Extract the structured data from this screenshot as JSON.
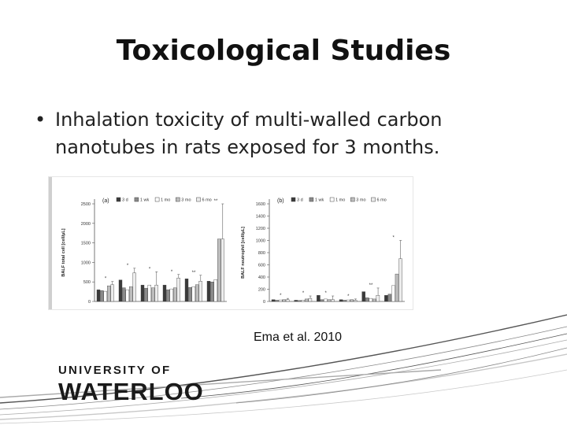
{
  "slide": {
    "title": "Toxicological Studies",
    "bullet_marker": "•",
    "bullet_text": "Inhalation toxicity of multi-walled carbon nanotubes in rats exposed for 3 months.",
    "citation": "Ema et al. 2010"
  },
  "logo": {
    "line1": "UNIVERSITY OF",
    "line2": "WATERLOO"
  },
  "chart_data": [
    {
      "type": "bar",
      "panel_label": "(a)",
      "ylabel": "BALF total cell [cell/μL]",
      "ylim": [
        0,
        2500
      ],
      "yticks": [
        "0",
        "500",
        "1000",
        "1500",
        "2000",
        "2500"
      ],
      "legend": [
        "3 d",
        "1 wk",
        "1 mo",
        "3 mo",
        "6 mo"
      ],
      "legend_position": "top",
      "groups": 6,
      "series": [
        {
          "values": [
            300,
            550,
            420,
            420,
            580,
            520
          ]
        },
        {
          "values": [
            280,
            350,
            340,
            300,
            360,
            500
          ]
        },
        {
          "values": [
            260,
            300,
            420,
            320,
            380,
            560
          ]
        },
        {
          "values": [
            400,
            380,
            350,
            350,
            430,
            1600
          ]
        },
        {
          "values": [
            430,
            730,
            420,
            600,
            520,
            1600
          ]
        }
      ],
      "errors": [
        80,
        120,
        340,
        90,
        150,
        900
      ],
      "annotations": [
        "*",
        "*",
        "*",
        "*",
        "**",
        "**"
      ]
    },
    {
      "type": "bar",
      "panel_label": "(b)",
      "ylabel": "BALF neutrophil [cell/μL]",
      "ylim": [
        0,
        1600
      ],
      "yticks": [
        "0",
        "200",
        "400",
        "600",
        "800",
        "1000",
        "1200",
        "1400",
        "1600"
      ],
      "legend": [
        "3 d",
        "1 wk",
        "1 mo",
        "3 mo",
        "6 mo"
      ],
      "legend_position": "top",
      "groups": 6,
      "series": [
        {
          "values": [
            30,
            20,
            100,
            30,
            160,
            100
          ]
        },
        {
          "values": [
            20,
            15,
            30,
            20,
            60,
            120
          ]
        },
        {
          "values": [
            25,
            20,
            40,
            25,
            50,
            260
          ]
        },
        {
          "values": [
            30,
            40,
            30,
            30,
            40,
            450
          ]
        },
        {
          "values": [
            30,
            50,
            30,
            20,
            100,
            700
          ]
        }
      ],
      "errors": [
        20,
        40,
        60,
        20,
        120,
        300
      ],
      "annotations": [
        "*",
        "*",
        "*",
        "*",
        "**",
        "*"
      ]
    }
  ],
  "colors": {
    "series": [
      "#3a3a3a",
      "#8a8a8a",
      "#ffffff",
      "#bdbdbd",
      "#ececec"
    ],
    "swoosh": [
      "#555555",
      "#888888",
      "#aaaaaa",
      "#c8c8c8"
    ]
  }
}
